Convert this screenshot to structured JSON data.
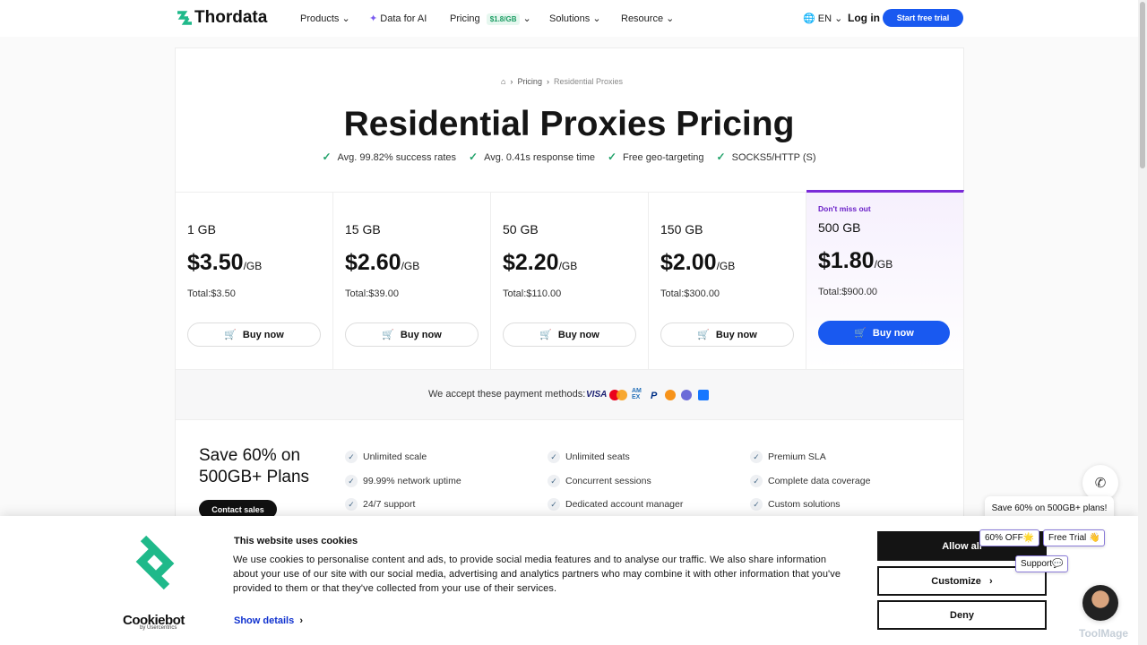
{
  "nav": {
    "logo": "Thordata",
    "items": [
      "Products",
      "Data for AI",
      "Pricing",
      "Solutions",
      "Resource"
    ],
    "pricing_badge": "$1.8/GB",
    "lang": "EN",
    "login": "Log in",
    "cta": "Start free trial"
  },
  "breadcrumb": [
    "Pricing",
    "Residential Proxies"
  ],
  "hero": {
    "title": "Residential Proxies Pricing",
    "features": [
      "Avg. 99.82% success rates",
      "Avg. 0.41s response time",
      "Free geo-targeting",
      "SOCKS5/HTTP (S)"
    ]
  },
  "plans": [
    {
      "size": "1 GB",
      "price": "$3.50",
      "unit": "/GB",
      "total": "Total:$3.50",
      "button": "Buy now"
    },
    {
      "size": "15 GB",
      "price": "$2.60",
      "unit": "/GB",
      "total": "Total:$39.00",
      "button": "Buy now"
    },
    {
      "size": "50 GB",
      "price": "$2.20",
      "unit": "/GB",
      "total": "Total:$110.00",
      "button": "Buy now"
    },
    {
      "size": "150 GB",
      "price": "$2.00",
      "unit": "/GB",
      "total": "Total:$300.00",
      "button": "Buy now"
    },
    {
      "tag": "Don't miss out",
      "size": "500 GB",
      "price": "$1.80",
      "unit": "/GB",
      "total": "Total:$900.00",
      "button": "Buy now"
    }
  ],
  "payment": {
    "label": "We accept these payment methods:",
    "icons": [
      "VISA",
      "AMEX"
    ]
  },
  "enterprise": {
    "title": "Save 60% on 500GB+ Plans",
    "button": "Contact sales",
    "features": [
      "Unlimited scale",
      "99.99% network uptime",
      "24/7 support",
      "Unlimited seats",
      "Concurrent sessions",
      "Dedicated account manager",
      "Premium SLA",
      "Complete data coverage",
      "Custom solutions"
    ]
  },
  "cookie": {
    "title": "This website uses cookies",
    "body": "We use cookies to personalise content and ads, to provide social media features and to analyse our traffic. We also share information about your use of our site with our social media, advertising and analytics partners who may combine it with other information that you've provided to them or that they've collected from your use of their services.",
    "show_details": "Show details",
    "allow": "Allow all",
    "customize": "Customize",
    "deny": "Deny",
    "brand": "Cookiebot",
    "brand_sub": "by Usercentrics"
  },
  "chat": {
    "bubble": "Save 60% on 500GB+ plans!",
    "chips": [
      "60% OFF🌟",
      "Free Trial 👋",
      "Support💬"
    ]
  },
  "watermark": "ToolMage"
}
